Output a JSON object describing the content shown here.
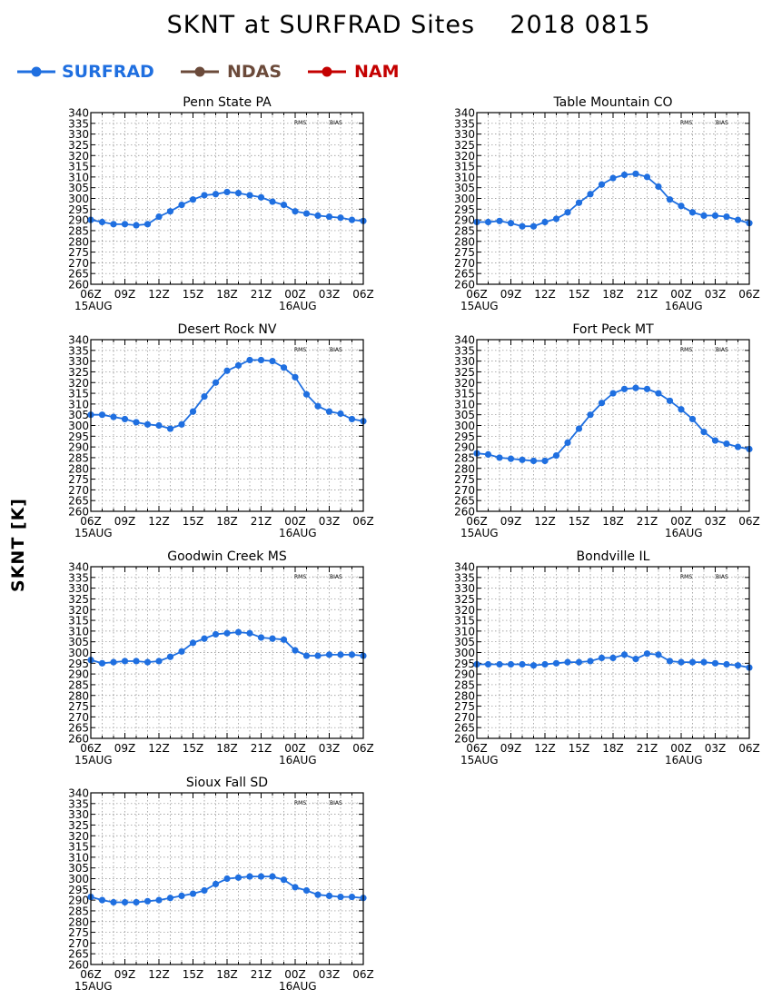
{
  "title": "SKNT at SURFRAD Sites    2018 0815",
  "ylabel": "SKNT [K]",
  "legend": [
    {
      "label": "SURFRAD",
      "color": "#1f6fe0"
    },
    {
      "label": "NDAS",
      "color": "#6b4a3a"
    },
    {
      "label": "NAM",
      "color": "#c40000"
    }
  ],
  "stats_labels": {
    "rms": "RMS",
    "bias": "BIAS"
  },
  "chart_data": [
    {
      "type": "line",
      "title": "Penn State PA",
      "x": [
        "06Z",
        "07Z",
        "08Z",
        "09Z",
        "10Z",
        "11Z",
        "12Z",
        "13Z",
        "14Z",
        "15Z",
        "16Z",
        "17Z",
        "18Z",
        "19Z",
        "20Z",
        "21Z",
        "22Z",
        "23Z",
        "00Z",
        "01Z",
        "02Z",
        "03Z",
        "04Z",
        "05Z",
        "06Z"
      ],
      "xticks": [
        "06Z",
        "09Z",
        "12Z",
        "15Z",
        "18Z",
        "21Z",
        "00Z",
        "03Z",
        "06Z"
      ],
      "date_labels": [
        "15AUG",
        "16AUG"
      ],
      "ylim": [
        260,
        340
      ],
      "yticks": [
        260,
        265,
        270,
        275,
        280,
        285,
        290,
        295,
        300,
        305,
        310,
        315,
        320,
        325,
        330,
        335,
        340
      ],
      "series": [
        {
          "name": "SURFRAD",
          "values": [
            290,
            289,
            288,
            288,
            287.5,
            288,
            291.5,
            294,
            297,
            299.5,
            301.5,
            302,
            303,
            302.5,
            301.5,
            300.5,
            298.5,
            297,
            294,
            293,
            292,
            291.5,
            291,
            290,
            289.5
          ]
        }
      ]
    },
    {
      "type": "line",
      "title": "Table Mountain CO",
      "x": [
        "06Z",
        "07Z",
        "08Z",
        "09Z",
        "10Z",
        "11Z",
        "12Z",
        "13Z",
        "14Z",
        "15Z",
        "16Z",
        "17Z",
        "18Z",
        "19Z",
        "20Z",
        "21Z",
        "22Z",
        "23Z",
        "00Z",
        "01Z",
        "02Z",
        "03Z",
        "04Z",
        "05Z",
        "06Z"
      ],
      "xticks": [
        "06Z",
        "09Z",
        "12Z",
        "15Z",
        "18Z",
        "21Z",
        "00Z",
        "03Z",
        "06Z"
      ],
      "date_labels": [
        "15AUG",
        "16AUG"
      ],
      "ylim": [
        260,
        340
      ],
      "yticks": [
        260,
        265,
        270,
        275,
        280,
        285,
        290,
        295,
        300,
        305,
        310,
        315,
        320,
        325,
        330,
        335,
        340
      ],
      "series": [
        {
          "name": "SURFRAD",
          "values": [
            289,
            289,
            289.5,
            288.5,
            287,
            287,
            289,
            290.5,
            293.5,
            298,
            302,
            306.5,
            309.5,
            311,
            311.5,
            310,
            305.5,
            299.5,
            296.5,
            293.5,
            292,
            292,
            291.5,
            290,
            288.5
          ]
        }
      ]
    },
    {
      "type": "line",
      "title": "Desert Rock NV",
      "x": [
        "06Z",
        "07Z",
        "08Z",
        "09Z",
        "10Z",
        "11Z",
        "12Z",
        "13Z",
        "14Z",
        "15Z",
        "16Z",
        "17Z",
        "18Z",
        "19Z",
        "20Z",
        "21Z",
        "22Z",
        "23Z",
        "00Z",
        "01Z",
        "02Z",
        "03Z",
        "04Z",
        "05Z",
        "06Z"
      ],
      "xticks": [
        "06Z",
        "09Z",
        "12Z",
        "15Z",
        "18Z",
        "21Z",
        "00Z",
        "03Z",
        "06Z"
      ],
      "date_labels": [
        "15AUG",
        "16AUG"
      ],
      "ylim": [
        260,
        340
      ],
      "yticks": [
        260,
        265,
        270,
        275,
        280,
        285,
        290,
        295,
        300,
        305,
        310,
        315,
        320,
        325,
        330,
        335,
        340
      ],
      "series": [
        {
          "name": "SURFRAD",
          "values": [
            305,
            305,
            304,
            303,
            301.5,
            300.5,
            300,
            298.5,
            300.5,
            306.5,
            313.5,
            320,
            325.5,
            328,
            330.5,
            330.5,
            330,
            327,
            322.5,
            314.5,
            309,
            306.5,
            305.5,
            303,
            302
          ]
        }
      ]
    },
    {
      "type": "line",
      "title": "Fort Peck MT",
      "x": [
        "06Z",
        "07Z",
        "08Z",
        "09Z",
        "10Z",
        "11Z",
        "12Z",
        "13Z",
        "14Z",
        "15Z",
        "16Z",
        "17Z",
        "18Z",
        "19Z",
        "20Z",
        "21Z",
        "22Z",
        "23Z",
        "00Z",
        "01Z",
        "02Z",
        "03Z",
        "04Z",
        "05Z",
        "06Z"
      ],
      "xticks": [
        "06Z",
        "09Z",
        "12Z",
        "15Z",
        "18Z",
        "21Z",
        "00Z",
        "03Z",
        "06Z"
      ],
      "date_labels": [
        "15AUG",
        "16AUG"
      ],
      "ylim": [
        260,
        340
      ],
      "yticks": [
        260,
        265,
        270,
        275,
        280,
        285,
        290,
        295,
        300,
        305,
        310,
        315,
        320,
        325,
        330,
        335,
        340
      ],
      "series": [
        {
          "name": "SURFRAD",
          "values": [
            287,
            286.5,
            285,
            284.5,
            284,
            283.5,
            283.5,
            286,
            292,
            298.5,
            305,
            310.5,
            315,
            317,
            317.5,
            317,
            315,
            311.5,
            307.5,
            303,
            297,
            293,
            291.5,
            290,
            289
          ]
        }
      ]
    },
    {
      "type": "line",
      "title": "Goodwin Creek MS",
      "x": [
        "06Z",
        "07Z",
        "08Z",
        "09Z",
        "10Z",
        "11Z",
        "12Z",
        "13Z",
        "14Z",
        "15Z",
        "16Z",
        "17Z",
        "18Z",
        "19Z",
        "20Z",
        "21Z",
        "22Z",
        "23Z",
        "00Z",
        "01Z",
        "02Z",
        "03Z",
        "04Z",
        "05Z",
        "06Z"
      ],
      "xticks": [
        "06Z",
        "09Z",
        "12Z",
        "15Z",
        "18Z",
        "21Z",
        "00Z",
        "03Z",
        "06Z"
      ],
      "date_labels": [
        "15AUG",
        "16AUG"
      ],
      "ylim": [
        260,
        340
      ],
      "yticks": [
        260,
        265,
        270,
        275,
        280,
        285,
        290,
        295,
        300,
        305,
        310,
        315,
        320,
        325,
        330,
        335,
        340
      ],
      "series": [
        {
          "name": "SURFRAD",
          "values": [
            296.5,
            295,
            295.5,
            296,
            296,
            295.5,
            296,
            298,
            300.5,
            304.5,
            306.5,
            308.5,
            309,
            309.5,
            309,
            307,
            306.5,
            306,
            301,
            298.5,
            298.5,
            299,
            299,
            299,
            298.5
          ]
        }
      ]
    },
    {
      "type": "line",
      "title": "Bondville IL",
      "x": [
        "06Z",
        "07Z",
        "08Z",
        "09Z",
        "10Z",
        "11Z",
        "12Z",
        "13Z",
        "14Z",
        "15Z",
        "16Z",
        "17Z",
        "18Z",
        "19Z",
        "20Z",
        "21Z",
        "22Z",
        "23Z",
        "00Z",
        "01Z",
        "02Z",
        "03Z",
        "04Z",
        "05Z",
        "06Z"
      ],
      "xticks": [
        "06Z",
        "09Z",
        "12Z",
        "15Z",
        "18Z",
        "21Z",
        "00Z",
        "03Z",
        "06Z"
      ],
      "date_labels": [
        "15AUG",
        "16AUG"
      ],
      "ylim": [
        260,
        340
      ],
      "yticks": [
        260,
        265,
        270,
        275,
        280,
        285,
        290,
        295,
        300,
        305,
        310,
        315,
        320,
        325,
        330,
        335,
        340
      ],
      "series": [
        {
          "name": "SURFRAD",
          "values": [
            294.5,
            294.5,
            294.5,
            294.5,
            294.5,
            294,
            294.5,
            295,
            295.5,
            295.5,
            296,
            297.5,
            297.5,
            299,
            297,
            299.5,
            299,
            296,
            295.5,
            295.5,
            295.5,
            295,
            294.5,
            294,
            293
          ]
        }
      ]
    },
    {
      "type": "line",
      "title": "Sioux Fall SD",
      "x": [
        "06Z",
        "07Z",
        "08Z",
        "09Z",
        "10Z",
        "11Z",
        "12Z",
        "13Z",
        "14Z",
        "15Z",
        "16Z",
        "17Z",
        "18Z",
        "19Z",
        "20Z",
        "21Z",
        "22Z",
        "23Z",
        "00Z",
        "01Z",
        "02Z",
        "03Z",
        "04Z",
        "05Z",
        "06Z"
      ],
      "xticks": [
        "06Z",
        "09Z",
        "12Z",
        "15Z",
        "18Z",
        "21Z",
        "00Z",
        "03Z",
        "06Z"
      ],
      "date_labels": [
        "15AUG",
        "16AUG"
      ],
      "ylim": [
        260,
        340
      ],
      "yticks": [
        260,
        265,
        270,
        275,
        280,
        285,
        290,
        295,
        300,
        305,
        310,
        315,
        320,
        325,
        330,
        335,
        340
      ],
      "series": [
        {
          "name": "SURFRAD",
          "values": [
            291.5,
            290,
            289,
            289,
            289,
            289.5,
            290,
            291,
            292,
            293,
            294.5,
            297.5,
            300,
            300.5,
            301,
            301,
            301,
            299.5,
            296,
            294.5,
            292.5,
            292,
            291.5,
            291.5,
            291
          ]
        }
      ]
    }
  ]
}
